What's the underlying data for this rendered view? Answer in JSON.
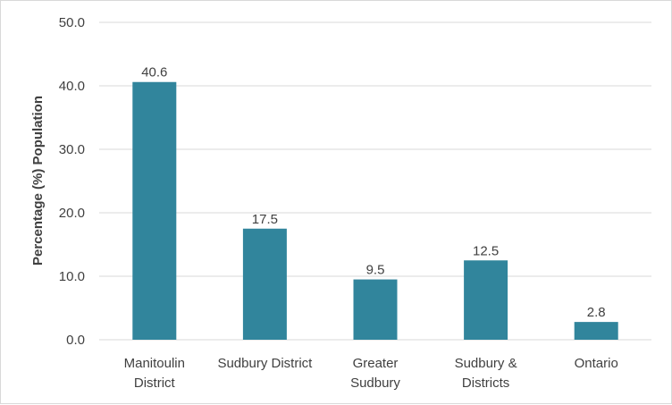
{
  "chart_data": {
    "type": "bar",
    "title": "",
    "xlabel": "",
    "ylabel": "Percentage (%) Population",
    "categories": [
      [
        "Manitoulin",
        "District"
      ],
      [
        "Sudbury District"
      ],
      [
        "Greater",
        "Sudbury"
      ],
      [
        "Sudbury &",
        "Districts"
      ],
      [
        "Ontario"
      ]
    ],
    "values": [
      40.6,
      17.5,
      9.5,
      12.5,
      2.8
    ],
    "value_labels": [
      "40.6",
      "17.5",
      "9.5",
      "12.5",
      "2.8"
    ],
    "ylim": [
      0,
      50
    ],
    "yticks": [
      "0.0",
      "10.0",
      "20.0",
      "30.0",
      "40.0",
      "50.0"
    ],
    "grid": true,
    "legend": "none",
    "bar_color": "#31859c"
  }
}
